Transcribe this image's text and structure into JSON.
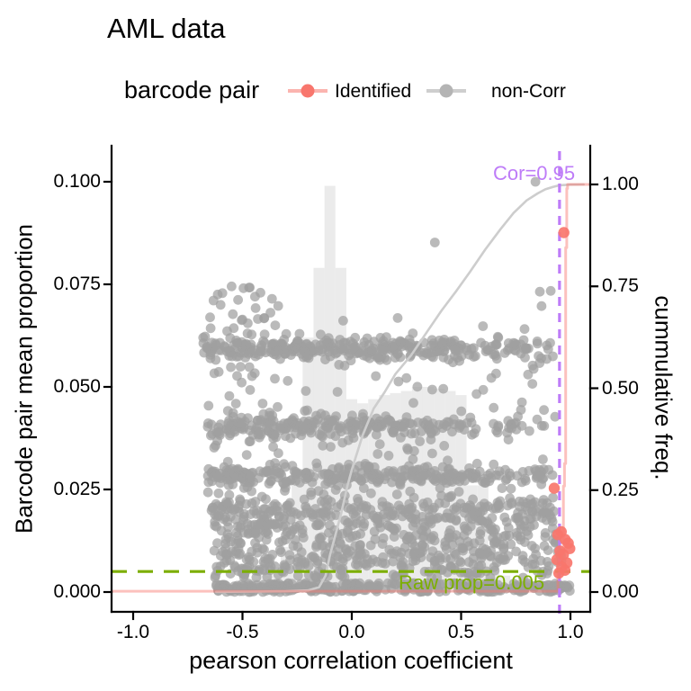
{
  "title": "AML data",
  "legend": {
    "title": "barcode pair",
    "items": [
      {
        "label": "Identified",
        "color": "#F8766D"
      },
      {
        "label": "non-Corr",
        "color": "#B4B4B4"
      }
    ]
  },
  "axes": {
    "x": {
      "label": "pearson correlation coefficient",
      "tick_labels": [
        "-1.0",
        "-0.5",
        "0.0",
        "0.5",
        "1.0"
      ],
      "tick_values": [
        -1,
        -0.5,
        0,
        0.5,
        1
      ],
      "range": [
        -1.1,
        1.09
      ]
    },
    "y_left": {
      "label": "Barcode pair mean proportion",
      "tick_labels": [
        "0.000",
        "0.025",
        "0.050",
        "0.075",
        "0.100"
      ],
      "tick_values": [
        0,
        0.025,
        0.05,
        0.075,
        0.1
      ],
      "range": [
        0,
        0.1088
      ]
    },
    "y_right": {
      "label": "cummulative freq.",
      "tick_labels": [
        "0.00",
        "0.25",
        "0.50",
        "0.75",
        "1.00"
      ],
      "tick_values": [
        0,
        0.25,
        0.5,
        0.75,
        1
      ],
      "range": [
        0,
        1.088
      ]
    }
  },
  "annotations": {
    "cor_line": {
      "x": 0.95,
      "label": "Cor=0.95",
      "color": "#BE7CF8"
    },
    "raw_prop_line": {
      "y": 0.005,
      "label": "Raw prop=0.005",
      "color": "#7CAE00"
    }
  },
  "chart_data": {
    "type": "scatter+histogram+ecdf",
    "xlabel": "pearson correlation coefficient",
    "ylabel_left": "Barcode pair mean proportion",
    "ylabel_right": "cummulative freq.",
    "histogram": {
      "bin_width": 0.05,
      "bins": [
        [
          -0.625,
          0.0015
        ],
        [
          -0.575,
          0.002
        ],
        [
          -0.525,
          0.0025
        ],
        [
          -0.475,
          0.003
        ],
        [
          -0.425,
          0.004
        ],
        [
          -0.375,
          0.006
        ],
        [
          -0.325,
          0.011
        ],
        [
          -0.275,
          0.03
        ],
        [
          -0.225,
          0.062
        ],
        [
          -0.175,
          0.079
        ],
        [
          -0.125,
          0.099
        ],
        [
          -0.075,
          0.079
        ],
        [
          -0.025,
          0.047
        ],
        [
          0.025,
          0.046
        ],
        [
          0.075,
          0.047
        ],
        [
          0.125,
          0.048
        ],
        [
          0.175,
          0.0485
        ],
        [
          0.225,
          0.049
        ],
        [
          0.275,
          0.05
        ],
        [
          0.325,
          0.05
        ],
        [
          0.375,
          0.0495
        ],
        [
          0.425,
          0.049
        ],
        [
          0.475,
          0.048
        ],
        [
          0.525,
          0.026
        ],
        [
          0.575,
          0.026
        ],
        [
          0.625,
          0.01
        ],
        [
          0.675,
          0.004
        ],
        [
          0.725,
          0.002
        ]
      ]
    },
    "ecdf_noncorr": [
      [
        -0.62,
        0.0005
      ],
      [
        -0.45,
        0.001
      ],
      [
        -0.3,
        0.002
      ],
      [
        -0.2,
        0.004
      ],
      [
        -0.15,
        0.012
      ],
      [
        -0.12,
        0.04
      ],
      [
        -0.1,
        0.09
      ],
      [
        -0.07,
        0.15
      ],
      [
        -0.05,
        0.19
      ],
      [
        -0.02,
        0.26
      ],
      [
        0.0,
        0.3
      ],
      [
        0.05,
        0.385
      ],
      [
        0.1,
        0.45
      ],
      [
        0.15,
        0.49
      ],
      [
        0.2,
        0.535
      ],
      [
        0.27,
        0.58
      ],
      [
        0.34,
        0.635
      ],
      [
        0.41,
        0.69
      ],
      [
        0.48,
        0.74
      ],
      [
        0.54,
        0.785
      ],
      [
        0.61,
        0.84
      ],
      [
        0.68,
        0.89
      ],
      [
        0.74,
        0.93
      ],
      [
        0.8,
        0.961
      ],
      [
        0.85,
        0.978
      ],
      [
        0.885,
        0.988
      ],
      [
        0.92,
        0.994
      ],
      [
        0.95,
        0.998
      ],
      [
        1.0,
        0.9995
      ],
      [
        1.06,
        1.0
      ]
    ],
    "ecdf_identified": [
      [
        -1.098,
        0.002
      ],
      [
        0.943,
        0.002
      ],
      [
        0.943,
        0.05
      ],
      [
        0.962,
        0.05
      ],
      [
        0.962,
        0.1
      ],
      [
        0.968,
        0.1
      ],
      [
        0.968,
        0.26
      ],
      [
        0.973,
        0.26
      ],
      [
        0.973,
        0.315
      ],
      [
        0.978,
        0.315
      ],
      [
        0.978,
        0.845
      ],
      [
        0.983,
        0.845
      ],
      [
        0.983,
        0.99
      ],
      [
        0.987,
        0.99
      ],
      [
        0.987,
        1.0
      ],
      [
        1.09,
        1.0
      ]
    ],
    "points_identified": [
      [
        0.97,
        0.0876
      ],
      [
        0.926,
        0.0253
      ],
      [
        0.958,
        0.0147
      ],
      [
        0.942,
        0.014
      ],
      [
        0.976,
        0.0128
      ],
      [
        0.99,
        0.0119
      ],
      [
        0.997,
        0.0106
      ],
      [
        0.952,
        0.01
      ],
      [
        0.968,
        0.0091
      ],
      [
        0.938,
        0.0079
      ],
      [
        0.984,
        0.0071
      ],
      [
        0.96,
        0.0061
      ],
      [
        0.975,
        0.0053
      ],
      [
        0.947,
        0.0046
      ]
    ],
    "points_noncorr_outliers": [
      [
        0.84,
        0.1
      ],
      [
        0.38,
        0.0852
      ],
      [
        0.86,
        0.0732
      ],
      [
        0.21,
        0.0668
      ],
      [
        -0.55,
        0.0745
      ],
      [
        -0.47,
        0.0742
      ],
      [
        -0.52,
        0.0712
      ],
      [
        -0.6,
        0.07
      ],
      [
        -0.44,
        0.0692
      ],
      [
        -0.5,
        0.0664
      ],
      [
        -0.4,
        0.0668
      ],
      [
        -0.35,
        0.065
      ],
      [
        -0.57,
        0.0636
      ],
      [
        -0.3,
        0.0629
      ],
      [
        0.6,
        0.0648
      ],
      [
        0.67,
        0.062
      ],
      [
        0.74,
        0.0607
      ],
      [
        0.72,
        0.0594
      ],
      [
        0.79,
        0.0641
      ],
      [
        0.91,
        0.0734
      ],
      [
        0.868,
        0.0697
      ],
      [
        0.786,
        0.0614
      ],
      [
        0.848,
        0.0611
      ],
      [
        0.827,
        0.0552
      ],
      [
        0.9,
        0.0298
      ],
      [
        0.92,
        0.023
      ],
      [
        0.88,
        0.0195
      ],
      [
        0.93,
        0.012
      ],
      [
        0.89,
        0.0175
      ]
    ],
    "points_noncorr_bands": [
      {
        "p_center": 0.0595,
        "p_sd": 0.0012,
        "segments": [
          [
            -0.68,
            0.5,
            240
          ],
          [
            0.5,
            0.93,
            45
          ]
        ]
      },
      {
        "p_center": 0.0595,
        "p_sd": 0.0035,
        "segments": [
          [
            -0.68,
            0.3,
            50
          ]
        ]
      },
      {
        "p_center": 0.0405,
        "p_sd": 0.0012,
        "segments": [
          [
            -0.66,
            0.38,
            185
          ],
          [
            0.38,
            0.93,
            40
          ]
        ]
      },
      {
        "p_center": 0.0405,
        "p_sd": 0.0032,
        "segments": [
          [
            -0.66,
            0.2,
            35
          ]
        ]
      },
      {
        "p_center": 0.0285,
        "p_sd": 0.0012,
        "segments": [
          [
            -0.66,
            0.58,
            215
          ],
          [
            0.58,
            0.93,
            35
          ]
        ]
      },
      {
        "p_center": 0.0285,
        "p_sd": 0.003,
        "segments": [
          [
            -0.66,
            0.3,
            30
          ]
        ]
      },
      {
        "p_center": 0.0195,
        "p_sd": 0.0018,
        "segments": [
          [
            -0.65,
            0.93,
            280
          ]
        ]
      },
      {
        "p_min": 0.0035,
        "p_max": 0.0165,
        "segments": [
          [
            -0.63,
            0.9,
            430
          ],
          [
            0.88,
            0.96,
            15
          ]
        ]
      },
      {
        "p_min": 0.0,
        "p_max": 0.0022,
        "segments": [
          [
            -0.63,
            1.0,
            320
          ]
        ]
      },
      {
        "p_min": 0.021,
        "p_max": 0.057,
        "segments": [
          [
            -0.65,
            0.9,
            95
          ]
        ]
      },
      {
        "p_min": 0.06,
        "p_max": 0.0745,
        "segments": [
          [
            -0.65,
            -0.33,
            20
          ]
        ]
      }
    ],
    "colors": {
      "identified": "#F8766D",
      "noncorr": "#A0A0A0",
      "histogram": "#E4E4E4",
      "ecdf_noncorr": "#CDCDCD",
      "ecdf_identified": "#F8766D",
      "cor_line": "#BE7CF8",
      "raw_prop_line": "#7CAE00"
    },
    "seed": 1337
  }
}
